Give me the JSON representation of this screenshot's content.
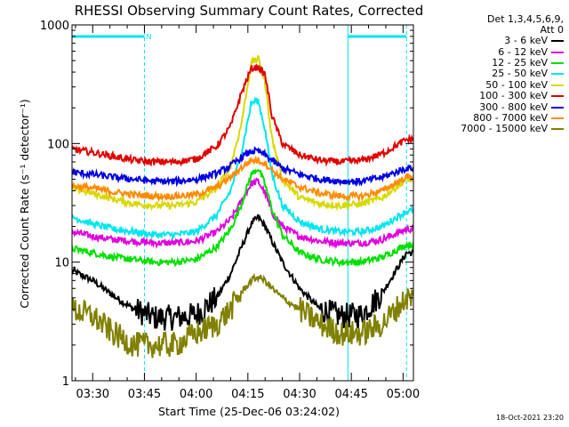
{
  "chart_data": {
    "type": "line",
    "title": "RHESSI Observing Summary Count Rates, Corrected",
    "xlabel": "Start Time (25-Dec-06 03:24:02)",
    "ylabel": "Corrected Count Rate (s⁻¹ detector⁻¹)",
    "y_scale": "log",
    "ylim": [
      1,
      1000
    ],
    "xlim": [
      "03:24:00",
      "05:03:00"
    ],
    "x_ticks": [
      "03:30",
      "03:45",
      "04:00",
      "04:15",
      "04:30",
      "04:45",
      "05:00"
    ],
    "y_ticks": [
      "1",
      "10",
      "100",
      "1000"
    ],
    "legend": {
      "position": "top-right",
      "header": [
        "Det 1,3,4,5,6,9,",
        "Att 0"
      ]
    },
    "flags": {
      "label": "N",
      "color": "#00e5ee",
      "bars": [
        [
          "03:24:00",
          "03:45:00"
        ],
        [
          "04:44:00",
          "05:01:00"
        ]
      ]
    },
    "vertical_lines": [
      {
        "x": "03:24:00",
        "style": "solid"
      },
      {
        "x": "03:45:00",
        "style": "dashed"
      },
      {
        "x": "04:44:00",
        "style": "solid"
      },
      {
        "x": "05:01:00",
        "style": "dashed"
      }
    ],
    "x": [
      "03:24",
      "03:30",
      "03:36",
      "03:42",
      "03:48",
      "03:54",
      "04:00",
      "04:06",
      "04:10",
      "04:13",
      "04:16",
      "04:18",
      "04:20",
      "04:22",
      "04:25",
      "04:30",
      "04:36",
      "04:42",
      "04:48",
      "04:54",
      "05:01"
    ],
    "series": [
      {
        "name": "3 - 6 keV",
        "color": "#000000",
        "values": [
          8.5,
          7,
          5.2,
          4,
          3.4,
          3.4,
          3.6,
          5,
          8,
          13,
          21,
          24,
          20,
          15,
          10,
          6,
          4,
          3.5,
          3.6,
          5.5,
          12
        ]
      },
      {
        "name": "6 - 12 keV",
        "color": "#e000e0",
        "values": [
          18,
          16.5,
          15.5,
          15,
          14.5,
          14.5,
          15,
          18,
          23,
          32,
          46,
          48,
          38,
          26,
          20,
          16.5,
          15,
          14.5,
          14.5,
          15.5,
          19
        ]
      },
      {
        "name": "12 - 25 keV",
        "color": "#00e000",
        "values": [
          13,
          12,
          11,
          10.5,
          10,
          10,
          10.5,
          13.5,
          19,
          30,
          55,
          62,
          45,
          28,
          17,
          12,
          10.5,
          10,
          10,
          11,
          14
        ]
      },
      {
        "name": "25 - 50 keV",
        "color": "#00e5ee",
        "values": [
          24,
          21,
          19,
          18,
          17,
          17,
          18,
          25,
          40,
          80,
          220,
          230,
          130,
          55,
          30,
          22,
          19,
          18,
          18,
          20,
          27
        ]
      },
      {
        "name": "50 - 100 keV",
        "color": "#d8d800",
        "values": [
          42,
          38,
          34,
          31,
          30,
          30,
          32,
          42,
          65,
          140,
          480,
          520,
          320,
          110,
          50,
          35,
          31,
          30,
          31,
          35,
          50
        ]
      },
      {
        "name": "100 - 300 keV",
        "color": "#e00000",
        "values": [
          90,
          84,
          78,
          72,
          70,
          70,
          74,
          95,
          140,
          260,
          430,
          440,
          380,
          170,
          100,
          80,
          72,
          70,
          72,
          82,
          108
        ]
      },
      {
        "name": "300 - 800 keV",
        "color": "#0000e0",
        "values": [
          57,
          55,
          52,
          50,
          48,
          48,
          50,
          56,
          65,
          76,
          86,
          86,
          80,
          72,
          62,
          55,
          50,
          48,
          48,
          52,
          62
        ]
      },
      {
        "name": "800 - 7000 keV",
        "color": "#ff8c00",
        "values": [
          44,
          42,
          39,
          37,
          36,
          36,
          37,
          43,
          52,
          62,
          72,
          72,
          68,
          60,
          50,
          43,
          38,
          36,
          36,
          40,
          52
        ]
      },
      {
        "name": "7000 - 15000 keV",
        "color": "#808000",
        "values": [
          4,
          3.5,
          2.5,
          2,
          2,
          2,
          2.5,
          3,
          4,
          5.5,
          7,
          7.5,
          7,
          6,
          5,
          4,
          3,
          2.5,
          2.5,
          3,
          5
        ]
      }
    ]
  },
  "footer": {
    "timestamp": "18-Oct-2021 23:20"
  }
}
